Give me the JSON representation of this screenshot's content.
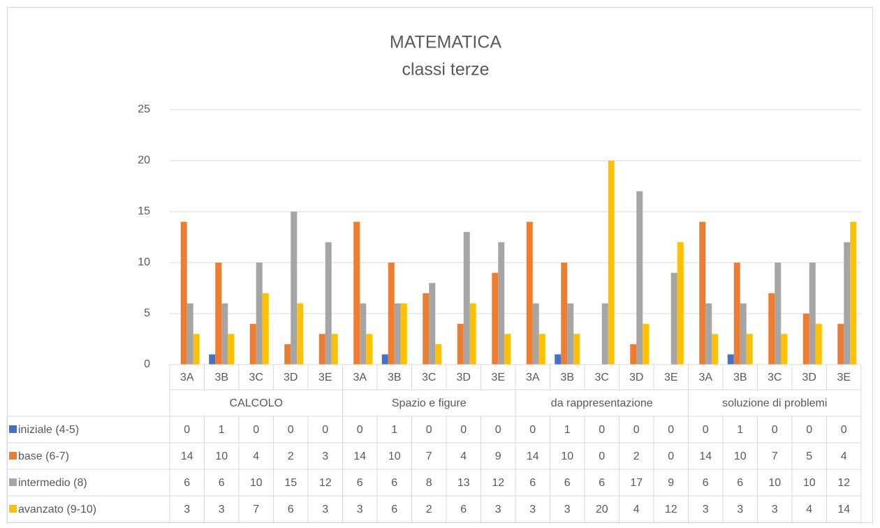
{
  "chart_data": {
    "type": "bar",
    "title": "MATEMATICA",
    "subtitle": "classi terze",
    "categories": [
      "3A",
      "3B",
      "3C",
      "3D",
      "3E",
      "3A",
      "3B",
      "3C",
      "3D",
      "3E",
      "3A",
      "3B",
      "3C",
      "3D",
      "3E",
      "3A",
      "3B",
      "3C",
      "3D",
      "3E"
    ],
    "category_groups": [
      "CALCOLO",
      "Spazio e figure",
      "da rappresentazione",
      "soluzione di problemi"
    ],
    "series": [
      {
        "name": "iniziale (4-5)",
        "color": "#4472c4",
        "values": [
          0,
          1,
          0,
          0,
          0,
          0,
          1,
          0,
          0,
          0,
          0,
          1,
          0,
          0,
          0,
          0,
          1,
          0,
          0,
          0
        ]
      },
      {
        "name": "base (6-7)",
        "color": "#ed7d31",
        "values": [
          14,
          10,
          4,
          2,
          3,
          14,
          10,
          7,
          4,
          9,
          14,
          10,
          0,
          2,
          0,
          14,
          10,
          7,
          5,
          4
        ]
      },
      {
        "name": "intermedio (8)",
        "color": "#a5a5a5",
        "values": [
          6,
          6,
          10,
          15,
          12,
          6,
          6,
          8,
          13,
          12,
          6,
          6,
          6,
          17,
          9,
          6,
          6,
          10,
          10,
          12
        ]
      },
      {
        "name": "avanzato (9-10)",
        "color": "#ffc000",
        "values": [
          3,
          3,
          7,
          6,
          3,
          3,
          6,
          2,
          6,
          3,
          3,
          3,
          20,
          4,
          12,
          3,
          3,
          3,
          4,
          14
        ]
      }
    ],
    "ylim": [
      0,
      25
    ],
    "yticks": [
      0,
      5,
      10,
      15,
      20,
      25
    ],
    "grid": true,
    "data_table": true
  }
}
